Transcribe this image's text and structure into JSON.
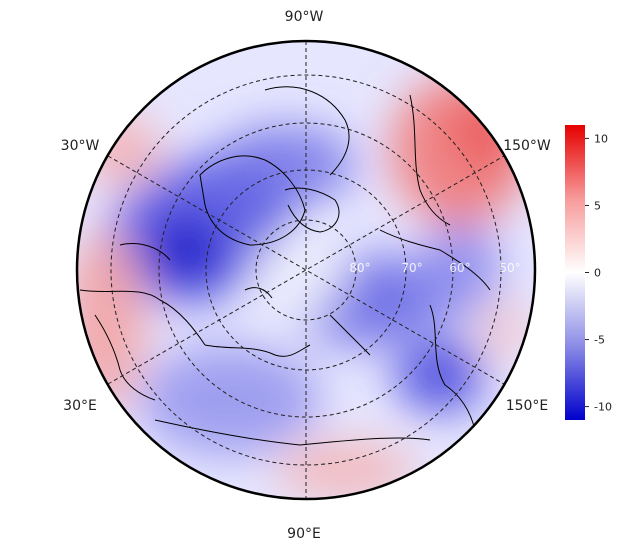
{
  "map": {
    "projection": "north-polar-stereographic",
    "longitude_labels": {
      "top": "90°W",
      "upper_left": "30°W",
      "upper_right": "150°W",
      "lower_left": "30°E",
      "lower_right": "150°E",
      "bottom": "90°E"
    },
    "latitude_labels": [
      "80°",
      "70°",
      "60°",
      "50°"
    ],
    "field": {
      "name": "",
      "colormap": [
        "#0000cc",
        "#ffffff",
        "#e60000"
      ],
      "range": [
        -11,
        11
      ]
    }
  },
  "colorbar": {
    "ticks": [
      "10",
      "5",
      "0",
      "-5",
      "-10"
    ],
    "tick_values": [
      10,
      5,
      0,
      -5,
      -10
    ],
    "min": -11,
    "max": 11,
    "top_color": "#e60000",
    "mid_color": "#ffffff",
    "bottom_color": "#0000cc"
  }
}
